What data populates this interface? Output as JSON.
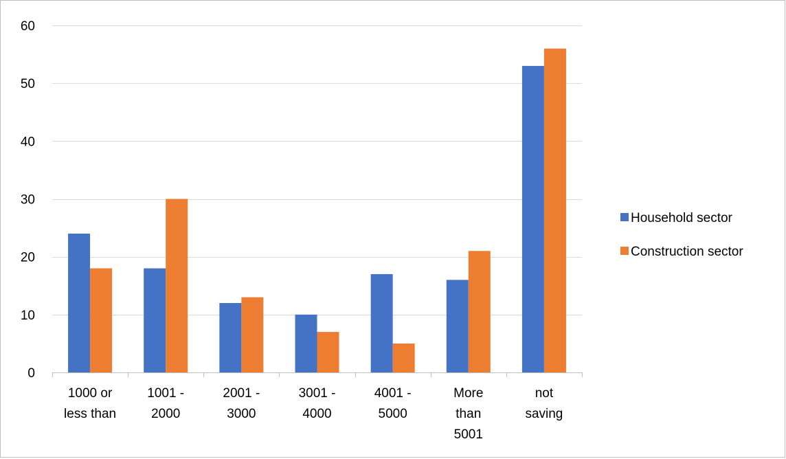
{
  "chart_data": {
    "type": "bar",
    "title": "",
    "xlabel": "",
    "ylabel": "",
    "categories": [
      [
        "1000 or",
        "less than"
      ],
      [
        "1001 -",
        "2000"
      ],
      [
        "2001 -",
        "3000"
      ],
      [
        "3001 -",
        "4000"
      ],
      [
        "4001 -",
        "5000"
      ],
      [
        "More",
        "than",
        "5001"
      ],
      [
        "not",
        "saving"
      ]
    ],
    "series": [
      {
        "name": "Household sector",
        "color": "#4472c4",
        "values": [
          24,
          18,
          12,
          10,
          17,
          16,
          53
        ]
      },
      {
        "name": "Construction sector",
        "color": "#ed7d31",
        "values": [
          18,
          30,
          13,
          7,
          5,
          21,
          56
        ]
      }
    ],
    "ylim": [
      0,
      60
    ],
    "yticks": [
      0,
      10,
      20,
      30,
      40,
      50,
      60
    ],
    "grid": true,
    "legend_position": "right"
  }
}
